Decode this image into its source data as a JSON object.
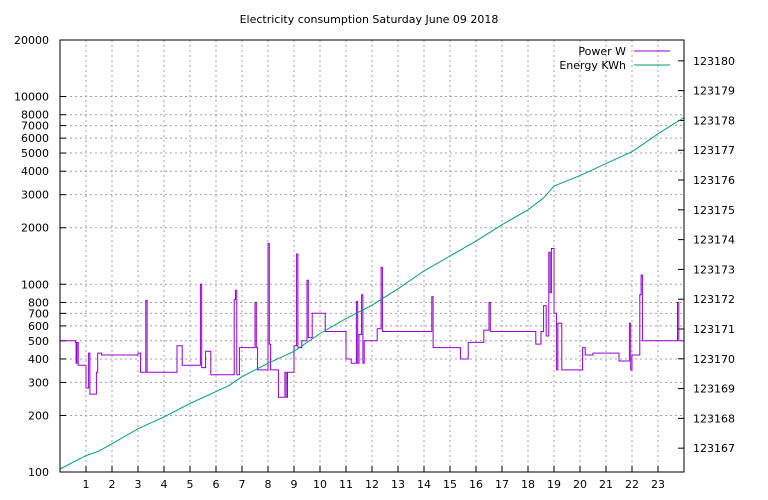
{
  "chart_data": {
    "type": "line",
    "title": "Electricity consumption Saturday June 09 2018",
    "x_range": [
      0,
      24
    ],
    "x_ticks": [
      1,
      2,
      3,
      4,
      5,
      6,
      7,
      8,
      9,
      10,
      11,
      12,
      13,
      14,
      15,
      16,
      17,
      18,
      19,
      20,
      21,
      22,
      23
    ],
    "y_left": {
      "scale": "log",
      "range": [
        100,
        20000
      ],
      "ticks": [
        100,
        200,
        300,
        400,
        500,
        600,
        700,
        800,
        1000,
        2000,
        3000,
        4000,
        5000,
        6000,
        7000,
        8000,
        10000,
        20000
      ]
    },
    "y_right": {
      "range": [
        123166.2,
        123180.7
      ],
      "ticks": [
        123167,
        123168,
        123169,
        123170,
        123171,
        123172,
        123173,
        123174,
        123175,
        123176,
        123177,
        123178,
        123179,
        123180
      ]
    },
    "grid": true,
    "legend_position": "top-right",
    "series": [
      {
        "name": "Power W",
        "axis": "left",
        "color": "#9400d3",
        "step": true,
        "points": [
          [
            0,
            500
          ],
          [
            0.6,
            490
          ],
          [
            0.62,
            380
          ],
          [
            0.65,
            490
          ],
          [
            0.7,
            370
          ],
          [
            1.0,
            280
          ],
          [
            1.1,
            430
          ],
          [
            1.15,
            260
          ],
          [
            1.4,
            340
          ],
          [
            1.45,
            430
          ],
          [
            1.6,
            420
          ],
          [
            2.0,
            420
          ],
          [
            2.5,
            420
          ],
          [
            3.0,
            430
          ],
          [
            3.1,
            340
          ],
          [
            3.3,
            820
          ],
          [
            3.35,
            340
          ],
          [
            4.0,
            340
          ],
          [
            4.5,
            470
          ],
          [
            4.7,
            370
          ],
          [
            5.0,
            370
          ],
          [
            5.4,
            1000
          ],
          [
            5.45,
            360
          ],
          [
            5.6,
            440
          ],
          [
            5.8,
            330
          ],
          [
            6.2,
            330
          ],
          [
            6.5,
            330
          ],
          [
            6.7,
            830
          ],
          [
            6.75,
            930
          ],
          [
            6.8,
            330
          ],
          [
            6.9,
            460
          ],
          [
            7.3,
            460
          ],
          [
            7.5,
            800
          ],
          [
            7.55,
            460
          ],
          [
            7.6,
            350
          ],
          [
            7.9,
            350
          ],
          [
            8.0,
            1650
          ],
          [
            8.05,
            480
          ],
          [
            8.1,
            350
          ],
          [
            8.4,
            250
          ],
          [
            8.65,
            340
          ],
          [
            8.7,
            250
          ],
          [
            8.75,
            340
          ],
          [
            8.95,
            340
          ],
          [
            9.0,
            470
          ],
          [
            9.1,
            1450
          ],
          [
            9.15,
            460
          ],
          [
            9.3,
            500
          ],
          [
            9.5,
            1050
          ],
          [
            9.55,
            520
          ],
          [
            9.7,
            700
          ],
          [
            10.1,
            700
          ],
          [
            10.2,
            560
          ],
          [
            10.8,
            560
          ],
          [
            11.0,
            400
          ],
          [
            11.2,
            380
          ],
          [
            11.4,
            810
          ],
          [
            11.45,
            380
          ],
          [
            11.5,
            540
          ],
          [
            11.6,
            880
          ],
          [
            11.65,
            380
          ],
          [
            11.7,
            500
          ],
          [
            12.0,
            500
          ],
          [
            12.2,
            580
          ],
          [
            12.35,
            1230
          ],
          [
            12.4,
            560
          ],
          [
            12.5,
            560
          ],
          [
            13.0,
            560
          ],
          [
            13.5,
            560
          ],
          [
            14.0,
            560
          ],
          [
            14.3,
            860
          ],
          [
            14.35,
            460
          ],
          [
            14.6,
            460
          ],
          [
            15.0,
            460
          ],
          [
            15.4,
            400
          ],
          [
            15.7,
            490
          ],
          [
            16.0,
            490
          ],
          [
            16.3,
            570
          ],
          [
            16.5,
            800
          ],
          [
            16.55,
            560
          ],
          [
            17.0,
            560
          ],
          [
            17.5,
            560
          ],
          [
            18.0,
            560
          ],
          [
            18.3,
            480
          ],
          [
            18.5,
            560
          ],
          [
            18.6,
            770
          ],
          [
            18.7,
            530
          ],
          [
            18.8,
            1480
          ],
          [
            18.85,
            900
          ],
          [
            18.9,
            1550
          ],
          [
            19.0,
            700
          ],
          [
            19.1,
            350
          ],
          [
            19.15,
            620
          ],
          [
            19.3,
            350
          ],
          [
            19.9,
            350
          ],
          [
            20.1,
            460
          ],
          [
            20.2,
            420
          ],
          [
            20.5,
            430
          ],
          [
            21.0,
            430
          ],
          [
            21.5,
            390
          ],
          [
            21.9,
            620
          ],
          [
            21.95,
            350
          ],
          [
            22.0,
            420
          ],
          [
            22.3,
            880
          ],
          [
            22.35,
            1120
          ],
          [
            22.4,
            500
          ],
          [
            23.0,
            500
          ],
          [
            23.5,
            500
          ],
          [
            23.75,
            800
          ],
          [
            23.8,
            500
          ],
          [
            24.0,
            500
          ]
        ]
      },
      {
        "name": "Energy KWh",
        "axis": "right",
        "color": "#009e73",
        "step": false,
        "points": [
          [
            0,
            123166.3
          ],
          [
            1,
            123166.75
          ],
          [
            1.5,
            123166.9
          ],
          [
            2,
            123167.15
          ],
          [
            3,
            123167.65
          ],
          [
            4,
            123168.05
          ],
          [
            5,
            123168.5
          ],
          [
            6,
            123168.9
          ],
          [
            6.5,
            123169.1
          ],
          [
            7,
            123169.4
          ],
          [
            8,
            123169.85
          ],
          [
            9,
            123170.25
          ],
          [
            10,
            123170.85
          ],
          [
            11,
            123171.35
          ],
          [
            12,
            123171.8
          ],
          [
            13,
            123172.35
          ],
          [
            14,
            123172.95
          ],
          [
            15,
            123173.45
          ],
          [
            16,
            123173.95
          ],
          [
            17,
            123174.5
          ],
          [
            18,
            123175.0
          ],
          [
            18.6,
            123175.4
          ],
          [
            19,
            123175.8
          ],
          [
            20,
            123176.15
          ],
          [
            21,
            123176.55
          ],
          [
            22,
            123176.95
          ],
          [
            23,
            123177.55
          ],
          [
            24,
            123178.1
          ]
        ]
      }
    ]
  }
}
